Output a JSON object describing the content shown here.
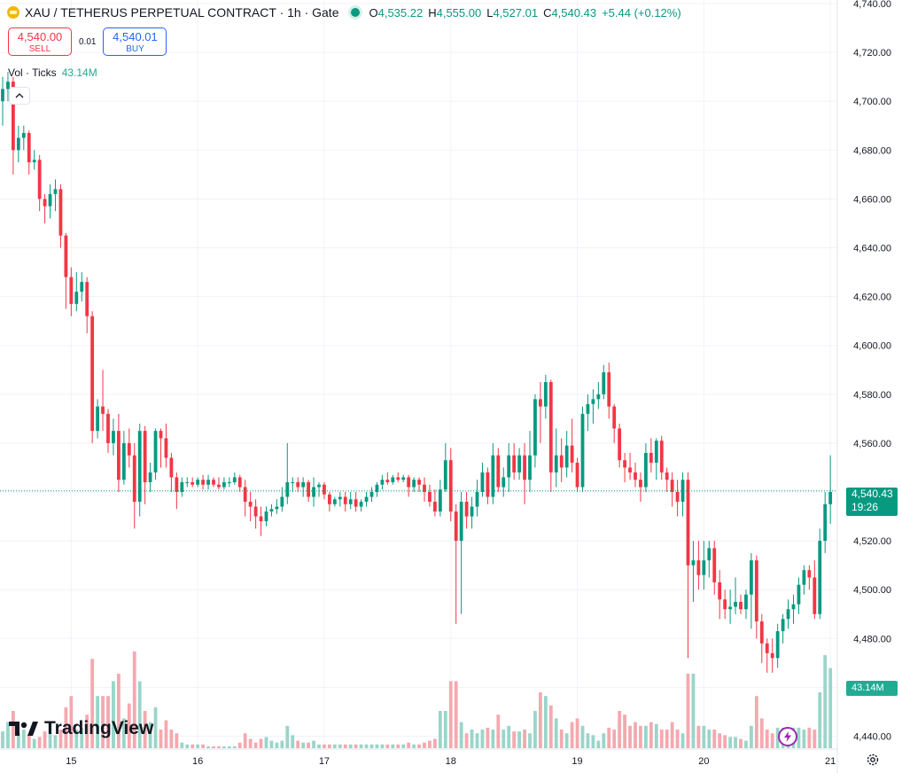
{
  "header": {
    "symbol": "XAU / TETHERUS PERPETUAL CONTRACT · 1h · Gate",
    "ohlc": {
      "o_label": "O",
      "o": "4,535.22",
      "h_label": "H",
      "h": "4,555.00",
      "l_label": "L",
      "l": "4,527.01",
      "c_label": "C",
      "c": "4,540.43",
      "change": "+5.44 (+0.12%)"
    }
  },
  "trade": {
    "sell_price": "4,540.00",
    "sell_label": "SELL",
    "spread": "0.01",
    "buy_price": "4,540.01",
    "buy_label": "BUY"
  },
  "volume": {
    "label": "Vol · Ticks",
    "value": "43.14M"
  },
  "price_tag": {
    "price": "4,540.43",
    "countdown": "19:26"
  },
  "vol_tag": "43.14M",
  "logo_text": "TradingView",
  "colors": {
    "up": "#089981",
    "down": "#f23645",
    "up_vol": "#9ad5c9",
    "down_vol": "#f4a9af",
    "grid": "#f0f3fa"
  },
  "chart_data": {
    "type": "candlestick",
    "ylim": [
      4438,
      4740
    ],
    "y_ticks": [
      4440,
      4460,
      4480,
      4500,
      4520,
      4540,
      4560,
      4580,
      4600,
      4620,
      4640,
      4660,
      4680,
      4700,
      4720,
      4740
    ],
    "y_tick_labels": [
      "4,440.00",
      "4,460.00",
      "4,480.00",
      "4,500.00",
      "4,520.00",
      "4,540.00",
      "4,560.00",
      "4,580.00",
      "4,600.00",
      "4,620.00",
      "4,640.00",
      "4,660.00",
      "4,680.00",
      "4,700.00",
      "4,720.00",
      "4,740.00"
    ],
    "x_ticks": [
      {
        "label": "15",
        "index": 13
      },
      {
        "label": "16",
        "index": 37
      },
      {
        "label": "17",
        "index": 61
      },
      {
        "label": "18",
        "index": 85
      },
      {
        "label": "19",
        "index": 109
      },
      {
        "label": "20",
        "index": 133
      },
      {
        "label": "21",
        "index": 157
      }
    ],
    "last_price": 4540.43,
    "ohlcv": [
      [
        4700,
        4710,
        4690,
        4705,
        9
      ],
      [
        4705,
        4712,
        4700,
        4708,
        14
      ],
      [
        4708,
        4710,
        4670,
        4680,
        20
      ],
      [
        4680,
        4690,
        4675,
        4685,
        8
      ],
      [
        4685,
        4690,
        4680,
        4687,
        10
      ],
      [
        4687,
        4688,
        4670,
        4675,
        7
      ],
      [
        4675,
        4680,
        4672,
        4676,
        5
      ],
      [
        4676,
        4678,
        4655,
        4660,
        6
      ],
      [
        4660,
        4662,
        4650,
        4657,
        9
      ],
      [
        4657,
        4666,
        4652,
        4662,
        14
      ],
      [
        4662,
        4668,
        4655,
        4664,
        7
      ],
      [
        4664,
        4666,
        4640,
        4645,
        10
      ],
      [
        4645,
        4646,
        4615,
        4628,
        22
      ],
      [
        4628,
        4632,
        4612,
        4617,
        28
      ],
      [
        4617,
        4630,
        4614,
        4622,
        10
      ],
      [
        4622,
        4630,
        4618,
        4626,
        11
      ],
      [
        4626,
        4628,
        4605,
        4612,
        18
      ],
      [
        4612,
        4614,
        4560,
        4565,
        48
      ],
      [
        4565,
        4578,
        4562,
        4575,
        28
      ],
      [
        4575,
        4590,
        4565,
        4572,
        28
      ],
      [
        4572,
        4574,
        4556,
        4560,
        28
      ],
      [
        4560,
        4570,
        4555,
        4565,
        36
      ],
      [
        4565,
        4572,
        4540,
        4545,
        40
      ],
      [
        4545,
        4565,
        4543,
        4560,
        16
      ],
      [
        4560,
        4566,
        4550,
        4555,
        24
      ],
      [
        4555,
        4560,
        4525,
        4536,
        52
      ],
      [
        4536,
        4568,
        4530,
        4565,
        36
      ],
      [
        4565,
        4567,
        4535,
        4544,
        20
      ],
      [
        4544,
        4552,
        4540,
        4548,
        14
      ],
      [
        4548,
        4566,
        4545,
        4565,
        22
      ],
      [
        4565,
        4566,
        4550,
        4562,
        10
      ],
      [
        4562,
        4568,
        4550,
        4554,
        15
      ],
      [
        4554,
        4556,
        4540,
        4546,
        10
      ],
      [
        4546,
        4548,
        4533,
        4540,
        8
      ],
      [
        4540,
        4546,
        4538,
        4544,
        3
      ],
      [
        4544,
        4546,
        4542,
        4544,
        2
      ],
      [
        4544,
        4546,
        4542,
        4543,
        2
      ],
      [
        4543,
        4546,
        4542,
        4545,
        2
      ],
      [
        4545,
        4547,
        4541,
        4543,
        2
      ],
      [
        4543,
        4547,
        4541,
        4545,
        1
      ],
      [
        4545,
        4546,
        4542,
        4543,
        1
      ],
      [
        4543,
        4546,
        4541,
        4542,
        1
      ],
      [
        4542,
        4546,
        4541,
        4544,
        1
      ],
      [
        4544,
        4546,
        4542,
        4544,
        1
      ],
      [
        4544,
        4548,
        4543,
        4546,
        1
      ],
      [
        4546,
        4547,
        4540,
        4542,
        3
      ],
      [
        4542,
        4545,
        4530,
        4536,
        8
      ],
      [
        4536,
        4540,
        4528,
        4534,
        5
      ],
      [
        4534,
        4537,
        4525,
        4530,
        3
      ],
      [
        4530,
        4534,
        4522,
        4528,
        5
      ],
      [
        4528,
        4534,
        4526,
        4532,
        6
      ],
      [
        4532,
        4535,
        4530,
        4533,
        4
      ],
      [
        4533,
        4537,
        4531,
        4534,
        3
      ],
      [
        4534,
        4542,
        4532,
        4538,
        4
      ],
      [
        4538,
        4560,
        4535,
        4544,
        12
      ],
      [
        4544,
        4546,
        4540,
        4544,
        7
      ],
      [
        4544,
        4546,
        4540,
        4542,
        4
      ],
      [
        4542,
        4546,
        4538,
        4544,
        3
      ],
      [
        4544,
        4545,
        4536,
        4538,
        3
      ],
      [
        4538,
        4546,
        4534,
        4542,
        4
      ],
      [
        4542,
        4544,
        4538,
        4543,
        2
      ],
      [
        4543,
        4544,
        4537,
        4539,
        2
      ],
      [
        4539,
        4540,
        4532,
        4535,
        2
      ],
      [
        4535,
        4538,
        4534,
        4537,
        2
      ],
      [
        4537,
        4540,
        4534,
        4538,
        2
      ],
      [
        4538,
        4540,
        4532,
        4535,
        2
      ],
      [
        4535,
        4540,
        4533,
        4537,
        2
      ],
      [
        4537,
        4540,
        4532,
        4534,
        2
      ],
      [
        4534,
        4537,
        4532,
        4536,
        2
      ],
      [
        4536,
        4540,
        4534,
        4538,
        2
      ],
      [
        4538,
        4542,
        4536,
        4540,
        2
      ],
      [
        4540,
        4544,
        4538,
        4543,
        2
      ],
      [
        4543,
        4547,
        4541,
        4545,
        2
      ],
      [
        4545,
        4548,
        4543,
        4544,
        2
      ],
      [
        4544,
        4547,
        4543,
        4546,
        2
      ],
      [
        4546,
        4548,
        4544,
        4545,
        2
      ],
      [
        4545,
        4547,
        4544,
        4546,
        2
      ],
      [
        4546,
        4547,
        4538,
        4542,
        3
      ],
      [
        4542,
        4546,
        4540,
        4545,
        2
      ],
      [
        4545,
        4546,
        4540,
        4543,
        2
      ],
      [
        4543,
        4546,
        4536,
        4540,
        3
      ],
      [
        4540,
        4543,
        4534,
        4536,
        4
      ],
      [
        4536,
        4541,
        4530,
        4532,
        5
      ],
      [
        4532,
        4545,
        4530,
        4541,
        20
      ],
      [
        4541,
        4560,
        4540,
        4553,
        20
      ],
      [
        4553,
        4558,
        4528,
        4532,
        36
      ],
      [
        4532,
        4535,
        4486,
        4520,
        36
      ],
      [
        4520,
        4540,
        4490,
        4536,
        14
      ],
      [
        4536,
        4540,
        4525,
        4530,
        8
      ],
      [
        4530,
        4538,
        4525,
        4534,
        10
      ],
      [
        4534,
        4545,
        4530,
        4540,
        8
      ],
      [
        4540,
        4552,
        4538,
        4548,
        10
      ],
      [
        4548,
        4550,
        4535,
        4538,
        11
      ],
      [
        4538,
        4560,
        4535,
        4555,
        10
      ],
      [
        4555,
        4558,
        4540,
        4542,
        18
      ],
      [
        4542,
        4550,
        4538,
        4546,
        10
      ],
      [
        4546,
        4560,
        4540,
        4555,
        12
      ],
      [
        4555,
        4560,
        4545,
        4548,
        9
      ],
      [
        4548,
        4558,
        4545,
        4555,
        9
      ],
      [
        4555,
        4560,
        4535,
        4545,
        10
      ],
      [
        4545,
        4565,
        4540,
        4555,
        8
      ],
      [
        4555,
        4580,
        4550,
        4578,
        20
      ],
      [
        4578,
        4585,
        4560,
        4575,
        30
      ],
      [
        4575,
        4588,
        4570,
        4585,
        28
      ],
      [
        4585,
        4586,
        4540,
        4548,
        23
      ],
      [
        4548,
        4566,
        4542,
        4555,
        16
      ],
      [
        4555,
        4562,
        4544,
        4550,
        10
      ],
      [
        4550,
        4565,
        4546,
        4559,
        8
      ],
      [
        4559,
        4570,
        4548,
        4552,
        14
      ],
      [
        4552,
        4554,
        4540,
        4542,
        16
      ],
      [
        4542,
        4575,
        4540,
        4572,
        12
      ],
      [
        4572,
        4580,
        4565,
        4576,
        8
      ],
      [
        4576,
        4582,
        4568,
        4578,
        7
      ],
      [
        4578,
        4585,
        4574,
        4580,
        4
      ],
      [
        4580,
        4592,
        4578,
        4589,
        8
      ],
      [
        4589,
        4593,
        4570,
        4575,
        11
      ],
      [
        4575,
        4576,
        4560,
        4566,
        10
      ],
      [
        4566,
        4568,
        4550,
        4553,
        20
      ],
      [
        4553,
        4556,
        4544,
        4550,
        18
      ],
      [
        4550,
        4556,
        4545,
        4548,
        12
      ],
      [
        4548,
        4552,
        4542,
        4545,
        14
      ],
      [
        4545,
        4548,
        4536,
        4542,
        12
      ],
      [
        4542,
        4560,
        4540,
        4556,
        12
      ],
      [
        4556,
        4562,
        4548,
        4552,
        14
      ],
      [
        4552,
        4562,
        4545,
        4561,
        13
      ],
      [
        4561,
        4563,
        4545,
        4548,
        10
      ],
      [
        4548,
        4550,
        4540,
        4545,
        10
      ],
      [
        4545,
        4548,
        4534,
        4540,
        14
      ],
      [
        4540,
        4545,
        4530,
        4536,
        10
      ],
      [
        4536,
        4548,
        4530,
        4545,
        8
      ],
      [
        4545,
        4548,
        4472,
        4510,
        40
      ],
      [
        4510,
        4520,
        4495,
        4512,
        40
      ],
      [
        4512,
        4520,
        4500,
        4506,
        12
      ],
      [
        4506,
        4520,
        4500,
        4512,
        12
      ],
      [
        4512,
        4520,
        4505,
        4517,
        10
      ],
      [
        4517,
        4520,
        4498,
        4503,
        10
      ],
      [
        4503,
        4508,
        4488,
        4496,
        8
      ],
      [
        4496,
        4500,
        4488,
        4492,
        7
      ],
      [
        4492,
        4500,
        4486,
        4493,
        6
      ],
      [
        4493,
        4505,
        4490,
        4495,
        6
      ],
      [
        4495,
        4498,
        4490,
        4492,
        5
      ],
      [
        4492,
        4500,
        4488,
        4498,
        4
      ],
      [
        4498,
        4515,
        4484,
        4512,
        12
      ],
      [
        4512,
        4514,
        4480,
        4487,
        28
      ],
      [
        4487,
        4490,
        4470,
        4478,
        16
      ],
      [
        4478,
        4480,
        4466,
        4474,
        10
      ],
      [
        4474,
        4480,
        4466,
        4472,
        8
      ],
      [
        4472,
        4486,
        4468,
        4483,
        11
      ],
      [
        4483,
        4490,
        4478,
        4488,
        11
      ],
      [
        4488,
        4496,
        4484,
        4492,
        11
      ],
      [
        4492,
        4498,
        4486,
        4494,
        11
      ],
      [
        4494,
        4505,
        4490,
        4502,
        11
      ],
      [
        4502,
        4510,
        4498,
        4508,
        10
      ],
      [
        4508,
        4510,
        4500,
        4505,
        11
      ],
      [
        4505,
        4512,
        4488,
        4490,
        10
      ],
      [
        4490,
        4525,
        4488,
        4520,
        30
      ],
      [
        4520,
        4540,
        4515,
        4535,
        50
      ],
      [
        4535,
        4555,
        4527,
        4540,
        43
      ]
    ]
  }
}
